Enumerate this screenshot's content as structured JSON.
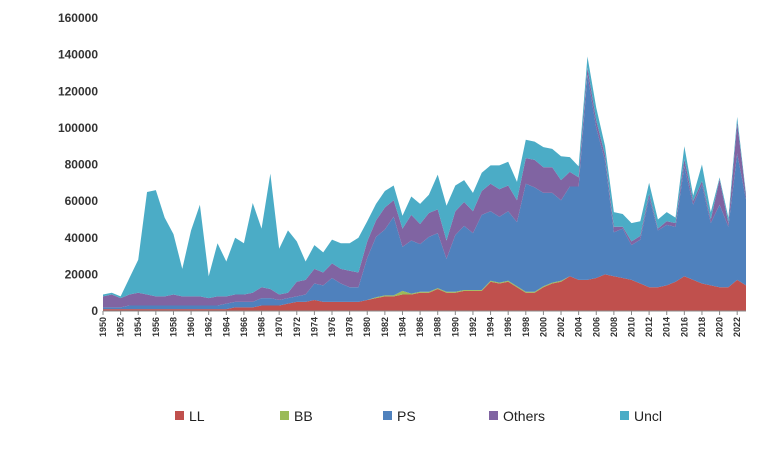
{
  "chart_data": {
    "type": "area",
    "stacked": true,
    "title": "",
    "xlabel": "",
    "ylabel": "",
    "ylim": [
      0,
      160000
    ],
    "yticks": [
      0,
      20000,
      40000,
      60000,
      80000,
      100000,
      120000,
      140000,
      160000
    ],
    "ytick_labels": [
      "0",
      "20000",
      "40000",
      "60000",
      "80000",
      "100000",
      "120000",
      "140000",
      "160000"
    ],
    "grid": false,
    "legend": "bottom",
    "x": [
      1950,
      1951,
      1952,
      1953,
      1954,
      1955,
      1956,
      1957,
      1958,
      1959,
      1960,
      1961,
      1962,
      1963,
      1964,
      1965,
      1966,
      1967,
      1968,
      1969,
      1970,
      1971,
      1972,
      1973,
      1974,
      1975,
      1976,
      1977,
      1978,
      1979,
      1980,
      1981,
      1982,
      1983,
      1984,
      1985,
      1986,
      1987,
      1988,
      1989,
      1990,
      1991,
      1992,
      1993,
      1994,
      1995,
      1996,
      1997,
      1998,
      1999,
      2000,
      2001,
      2002,
      2003,
      2004,
      2005,
      2006,
      2007,
      2008,
      2009,
      2010,
      2011,
      2012,
      2013,
      2014,
      2015,
      2016,
      2017,
      2018,
      2019,
      2020,
      2021,
      2022,
      2023
    ],
    "xtick_labels": [
      "1950",
      "1952",
      "1954",
      "1956",
      "1958",
      "1960",
      "1962",
      "1964",
      "1966",
      "1968",
      "1970",
      "1972",
      "1974",
      "1976",
      "1978",
      "1980",
      "1982",
      "1984",
      "1986",
      "1988",
      "1990",
      "1992",
      "1994",
      "1996",
      "1998",
      "2000",
      "2002",
      "2004",
      "2006",
      "2008",
      "2010",
      "2012",
      "2014",
      "2016",
      "2018",
      "2020",
      "2022"
    ],
    "series": [
      {
        "name": "LL",
        "color": "#c0504d",
        "values": [
          1000,
          1000,
          1000,
          1000,
          1000,
          1000,
          1000,
          1000,
          1000,
          1000,
          1000,
          1000,
          1000,
          1000,
          1000,
          2000,
          2000,
          2000,
          3000,
          3000,
          3000,
          4000,
          5000,
          5000,
          6000,
          5000,
          5000,
          5000,
          5000,
          5000,
          6000,
          7000,
          8000,
          8000,
          9000,
          9000,
          10000,
          10000,
          12000,
          10000,
          10000,
          11000,
          11000,
          11000,
          16000,
          15000,
          16000,
          13000,
          10000,
          10000,
          13000,
          15000,
          16000,
          19000,
          17000,
          17000,
          18000,
          20000,
          19000,
          18000,
          17000,
          15000,
          13000,
          13000,
          14000,
          16000,
          19000,
          17000,
          15000,
          14000,
          13000,
          13000,
          17000,
          14000
        ]
      },
      {
        "name": "BB",
        "color": "#9bbb59",
        "values": [
          0,
          0,
          0,
          0,
          0,
          0,
          0,
          0,
          0,
          0,
          0,
          0,
          0,
          0,
          0,
          0,
          0,
          0,
          0,
          0,
          0,
          0,
          0,
          0,
          0,
          0,
          0,
          0,
          0,
          0,
          0,
          500,
          500,
          500,
          2000,
          500,
          500,
          500,
          500,
          500,
          500,
          500,
          500,
          500,
          500,
          500,
          500,
          500,
          500,
          500,
          500,
          500,
          500,
          0,
          0,
          0,
          0,
          0,
          0,
          0,
          0,
          0,
          0,
          0,
          0,
          0,
          0,
          0,
          0,
          0,
          0,
          0,
          0,
          0
        ]
      },
      {
        "name": "PS",
        "color": "#4f81bd",
        "values": [
          1000,
          1000,
          1000,
          2000,
          2000,
          2000,
          2000,
          2000,
          2000,
          2000,
          2000,
          2000,
          2000,
          2000,
          3000,
          3000,
          3000,
          3000,
          4000,
          4000,
          3000,
          3000,
          3000,
          4000,
          9000,
          9000,
          13000,
          10000,
          8000,
          8000,
          23000,
          33000,
          36000,
          43000,
          24000,
          29000,
          26000,
          30000,
          30000,
          18000,
          31000,
          35000,
          31000,
          41000,
          38000,
          36000,
          38000,
          35000,
          59000,
          57000,
          51000,
          49000,
          44000,
          49000,
          51000,
          112000,
          82000,
          62000,
          24000,
          27000,
          19000,
          24000,
          49000,
          31000,
          33000,
          30000,
          60000,
          41000,
          54000,
          34000,
          45000,
          33000,
          69000,
          47000
        ]
      },
      {
        "name": "Others",
        "color": "#8064a2",
        "values": [
          6000,
          7000,
          5000,
          6000,
          7000,
          6000,
          5000,
          5000,
          6000,
          5000,
          5000,
          5000,
          4000,
          5000,
          4000,
          4000,
          4000,
          5000,
          6000,
          5000,
          3000,
          3000,
          8000,
          8000,
          8000,
          7000,
          8000,
          8000,
          9000,
          8000,
          9000,
          9000,
          12000,
          9000,
          10000,
          14000,
          11000,
          13000,
          13000,
          10000,
          13000,
          13000,
          12000,
          13000,
          15000,
          15000,
          14000,
          12000,
          14000,
          15000,
          14000,
          14000,
          11000,
          8000,
          5000,
          4000,
          4000,
          3000,
          3000,
          1000,
          2000,
          2000,
          2000,
          1000,
          2000,
          2000,
          4000,
          2000,
          2000,
          2000,
          14000,
          2000,
          17000,
          2000
        ]
      },
      {
        "name": "Uncl",
        "color": "#4bacc6",
        "values": [
          1000,
          1000,
          1000,
          9000,
          18000,
          56000,
          58000,
          43000,
          33000,
          15000,
          36000,
          50000,
          12000,
          29000,
          19000,
          31000,
          28000,
          49000,
          32000,
          63000,
          25000,
          34000,
          22000,
          10000,
          13000,
          11000,
          13000,
          14000,
          15000,
          19000,
          11000,
          9000,
          9000,
          8000,
          7000,
          10000,
          11000,
          10000,
          19000,
          19000,
          14000,
          12000,
          10000,
          10000,
          10000,
          13000,
          13000,
          10000,
          10000,
          10000,
          11000,
          10000,
          13000,
          8000,
          6000,
          6000,
          7000,
          5000,
          8000,
          7000,
          10000,
          8000,
          6000,
          5000,
          5000,
          3000,
          7000,
          3000,
          9000,
          4000,
          1000,
          3000,
          3000,
          1000
        ]
      }
    ]
  }
}
